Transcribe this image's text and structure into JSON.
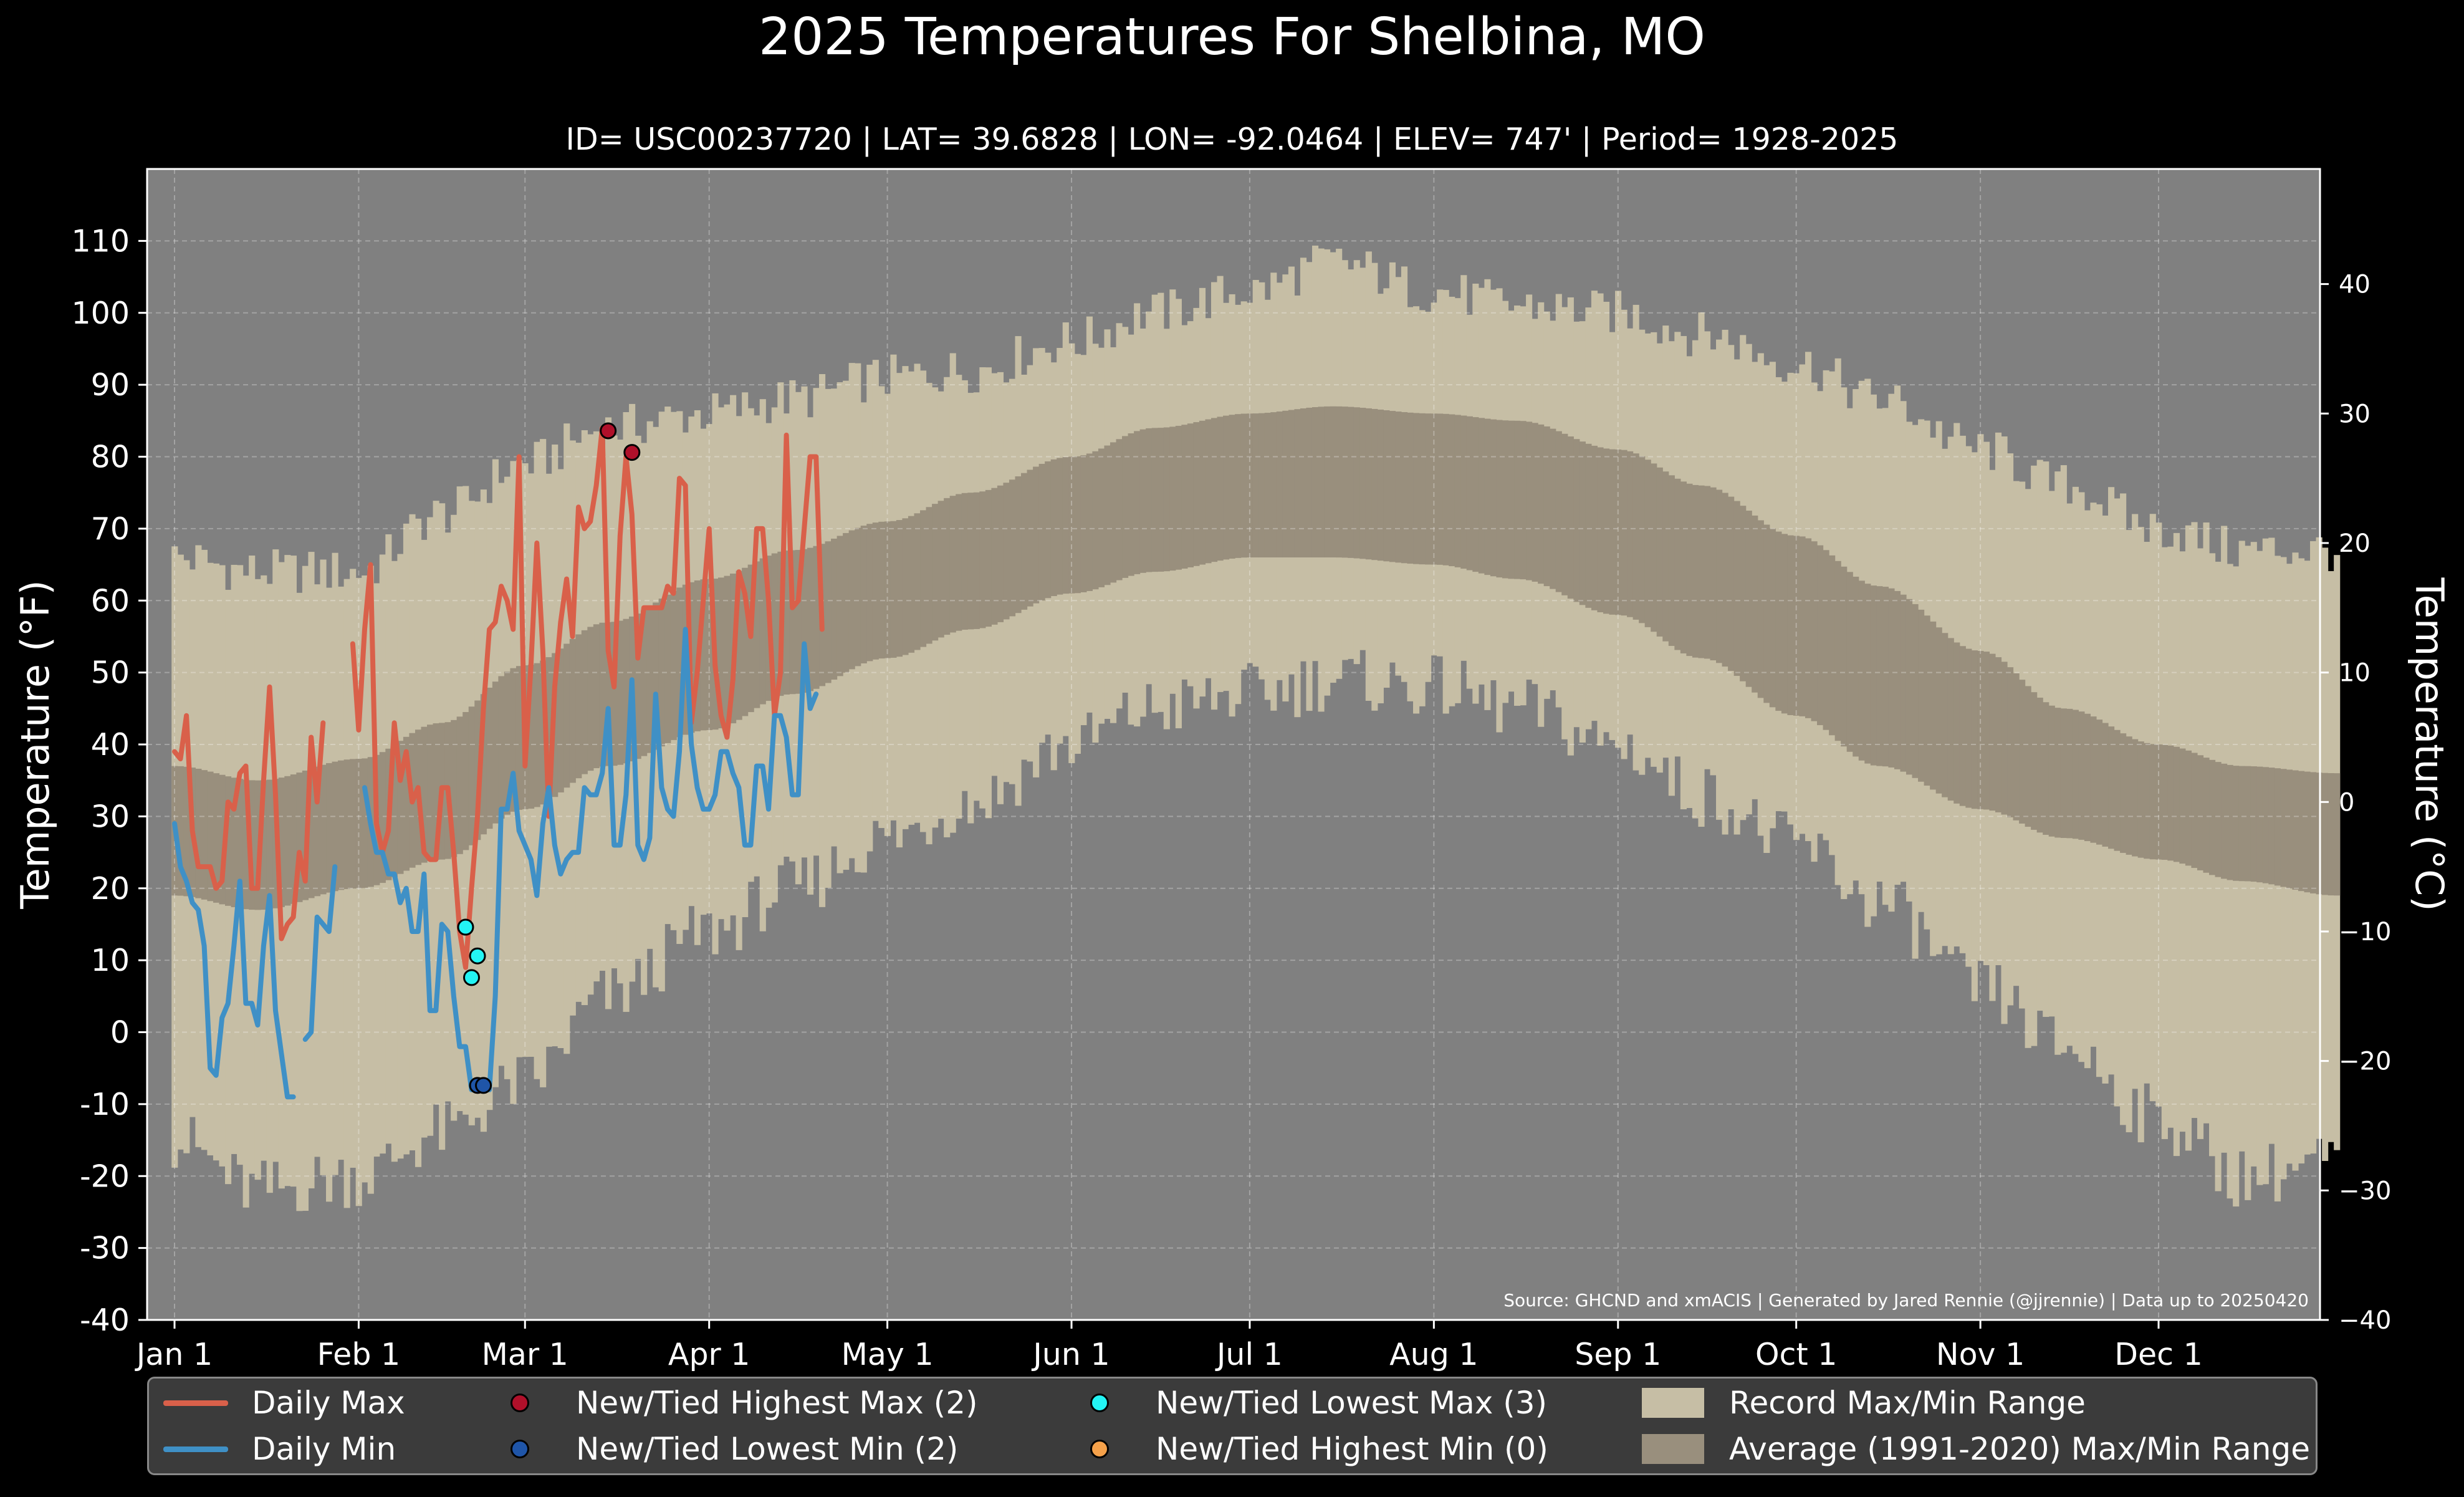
{
  "title": "2025 Temperatures For Shelbina, MO",
  "subtitle": "ID= USC00237720 | LAT= 39.6828 | LON= -92.0464 | ELEV= 747' | Period= 1928-2025",
  "source_note": "Source: GHCND and xmACIS | Generated by Jared Rennie (@jjrennie) | Data up to 20250420",
  "colors": {
    "background": "#000000",
    "plot_bg": "#808080",
    "record_range": "#c6bea5",
    "average_range": "#998f7d",
    "daily_max": "#d9604a",
    "daily_min": "#3f90c6",
    "highest_max": "#b0102a",
    "lowest_min": "#1f55a8",
    "lowest_max": "#23f4f4",
    "highest_min": "#f5a14a"
  },
  "legend": {
    "daily_max": "Daily Max",
    "daily_min": "Daily Min",
    "highest_max": "New/Tied Highest Max (2)",
    "lowest_min": "New/Tied Lowest Min (2)",
    "lowest_max": "New/Tied Lowest Max (3)",
    "highest_min": "New/Tied Highest Min (0)",
    "record_range": "Record Max/Min Range",
    "average_range": "Average (1991-2020) Max/Min Range"
  },
  "chart_data": {
    "type": "line",
    "title": "2025 Temperatures For Shelbina, MO",
    "ylabel": "Temperature ( $^\\circ$F)",
    "ylabel_right": "Temperature ( $^\\circ$C)",
    "ylabel_display": "Temperature (°F)",
    "ylabel_right_display": "Temperature (°C)",
    "ylim": [
      -40,
      120
    ],
    "yticks": [
      -40,
      -30,
      -20,
      -10,
      0,
      10,
      20,
      30,
      40,
      50,
      60,
      70,
      80,
      90,
      100,
      110
    ],
    "yticks_right": [
      -40,
      -30,
      -20,
      -10,
      0,
      10,
      20,
      30,
      40
    ],
    "x_month_labels": [
      "Jan 1",
      "Feb 1",
      "Mar 1",
      "Apr 1",
      "May 1",
      "Jun 1",
      "Jul 1",
      "Aug 1",
      "Sep 1",
      "Oct 1",
      "Nov 1",
      "Dec 1"
    ],
    "grid": true,
    "legend_position": "bottom",
    "record_range": {
      "max_anchors": [
        [
          1,
          66
        ],
        [
          15,
          64
        ],
        [
          32,
          64
        ],
        [
          46,
          72
        ],
        [
          60,
          79
        ],
        [
          74,
          84
        ],
        [
          91,
          86
        ],
        [
          105,
          88
        ],
        [
          121,
          91
        ],
        [
          135,
          92
        ],
        [
          152,
          96
        ],
        [
          166,
          100
        ],
        [
          182,
          103
        ],
        [
          196,
          107
        ],
        [
          213,
          103
        ],
        [
          227,
          101
        ],
        [
          244,
          100
        ],
        [
          258,
          97
        ],
        [
          274,
          93
        ],
        [
          288,
          88
        ],
        [
          305,
          81
        ],
        [
          319,
          76
        ],
        [
          335,
          70
        ],
        [
          349,
          67
        ],
        [
          365,
          67
        ]
      ],
      "min_anchors": [
        [
          1,
          -15
        ],
        [
          15,
          -22
        ],
        [
          32,
          -20
        ],
        [
          46,
          -14
        ],
        [
          60,
          -7
        ],
        [
          74,
          5
        ],
        [
          91,
          14
        ],
        [
          105,
          20
        ],
        [
          121,
          27
        ],
        [
          135,
          32
        ],
        [
          152,
          40
        ],
        [
          166,
          45
        ],
        [
          182,
          47
        ],
        [
          196,
          49
        ],
        [
          213,
          48
        ],
        [
          227,
          45
        ],
        [
          244,
          40
        ],
        [
          258,
          33
        ],
        [
          274,
          26
        ],
        [
          288,
          18
        ],
        [
          305,
          6
        ],
        [
          319,
          -2
        ],
        [
          335,
          -12
        ],
        [
          349,
          -20
        ],
        [
          365,
          -18
        ]
      ]
    },
    "average_range": {
      "max_anchors": [
        [
          1,
          37
        ],
        [
          15,
          35
        ],
        [
          32,
          38
        ],
        [
          46,
          43
        ],
        [
          60,
          51
        ],
        [
          74,
          57
        ],
        [
          91,
          63
        ],
        [
          105,
          67
        ],
        [
          121,
          71
        ],
        [
          135,
          75
        ],
        [
          152,
          80
        ],
        [
          166,
          84
        ],
        [
          182,
          86
        ],
        [
          196,
          87
        ],
        [
          213,
          86
        ],
        [
          227,
          85
        ],
        [
          244,
          81
        ],
        [
          258,
          76
        ],
        [
          274,
          69
        ],
        [
          288,
          62
        ],
        [
          305,
          53
        ],
        [
          319,
          45
        ],
        [
          335,
          40
        ],
        [
          349,
          37
        ],
        [
          365,
          36
        ]
      ],
      "min_anchors": [
        [
          1,
          19
        ],
        [
          15,
          17
        ],
        [
          32,
          20
        ],
        [
          46,
          24
        ],
        [
          60,
          31
        ],
        [
          74,
          37
        ],
        [
          91,
          42
        ],
        [
          105,
          47
        ],
        [
          121,
          52
        ],
        [
          135,
          56
        ],
        [
          152,
          61
        ],
        [
          166,
          64
        ],
        [
          182,
          66
        ],
        [
          196,
          66
        ],
        [
          213,
          65
        ],
        [
          227,
          63
        ],
        [
          244,
          58
        ],
        [
          258,
          52
        ],
        [
          274,
          44
        ],
        [
          288,
          37
        ],
        [
          305,
          31
        ],
        [
          319,
          27
        ],
        [
          335,
          24
        ],
        [
          349,
          21
        ],
        [
          365,
          19
        ]
      ]
    },
    "series": [
      {
        "name": "Daily Max",
        "x": [
          1,
          2,
          3,
          4,
          5,
          6,
          7,
          8,
          9,
          10,
          11,
          12,
          13,
          14,
          15,
          16,
          17,
          18,
          19,
          20,
          21,
          22,
          23,
          24,
          25,
          26,
          27,
          28,
          29,
          30,
          31,
          32,
          33,
          34,
          35,
          36,
          37,
          38,
          39,
          40,
          41,
          42,
          43,
          44,
          45,
          46,
          47,
          48,
          49,
          50,
          51,
          52,
          53,
          54,
          55,
          56,
          57,
          58,
          59,
          60,
          61,
          62,
          63,
          64,
          65,
          66,
          67,
          68,
          69,
          70,
          71,
          72,
          73,
          74,
          75,
          76,
          77,
          78,
          79,
          80,
          81,
          82,
          83,
          84,
          85,
          86,
          87,
          88,
          89,
          90,
          91,
          92,
          93,
          94,
          95,
          96,
          97,
          98,
          99,
          100,
          101,
          102,
          103,
          104,
          105,
          106,
          107,
          108,
          109,
          110
        ],
        "values": [
          39,
          38,
          44,
          28,
          23,
          23,
          23,
          20,
          21,
          32,
          31,
          36,
          37,
          20,
          20,
          35,
          48,
          33,
          13,
          15,
          16,
          25,
          21,
          41,
          32,
          43,
          null,
          null,
          null,
          null,
          54,
          42,
          56,
          65,
          29,
          25,
          28,
          43,
          35,
          39,
          32,
          34,
          25,
          24,
          24,
          34,
          34,
          25,
          14,
          9,
          20,
          30,
          45,
          56,
          57,
          62,
          60,
          56,
          80,
          37,
          51,
          68,
          53,
          30,
          48,
          57,
          63,
          55,
          73,
          70,
          71,
          76,
          84,
          53,
          48,
          69,
          80,
          72,
          52,
          59,
          59,
          59,
          59,
          62,
          61,
          77,
          76,
          43,
          50,
          60,
          70,
          51,
          44,
          41,
          49,
          64,
          61,
          55,
          70,
          70,
          60,
          44,
          50,
          83,
          59,
          60,
          70,
          80,
          80,
          56
        ]
      },
      {
        "name": "Daily Min",
        "x": [
          1,
          2,
          3,
          4,
          5,
          6,
          7,
          8,
          9,
          10,
          11,
          12,
          13,
          14,
          15,
          16,
          17,
          18,
          19,
          20,
          21,
          22,
          23,
          24,
          25,
          26,
          27,
          28,
          29,
          30,
          31,
          32,
          33,
          34,
          35,
          36,
          37,
          38,
          39,
          40,
          41,
          42,
          43,
          44,
          45,
          46,
          47,
          48,
          49,
          50,
          51,
          52,
          53,
          54,
          55,
          56,
          57,
          58,
          59,
          60,
          61,
          62,
          63,
          64,
          65,
          66,
          67,
          68,
          69,
          70,
          71,
          72,
          73,
          74,
          75,
          76,
          77,
          78,
          79,
          80,
          81,
          82,
          83,
          84,
          85,
          86,
          87,
          88,
          89,
          90,
          91,
          92,
          93,
          94,
          95,
          96,
          97,
          98,
          99,
          100,
          101,
          102,
          103,
          104,
          105,
          106,
          107,
          108,
          109,
          110
        ],
        "values": [
          29,
          23,
          21,
          18,
          17,
          12,
          -5,
          -6,
          2,
          4,
          12,
          21,
          4,
          4,
          1,
          12,
          19,
          3,
          -3,
          -9,
          -9,
          null,
          -1,
          0,
          16,
          15,
          14,
          23,
          null,
          null,
          null,
          null,
          34,
          29,
          25,
          25,
          22,
          22,
          18,
          20,
          14,
          14,
          22,
          3,
          3,
          15,
          14,
          5,
          -2,
          -2,
          -8,
          -8,
          -8,
          -8,
          5,
          31,
          31,
          36,
          28,
          26,
          24,
          19,
          29,
          34,
          26,
          22,
          24,
          25,
          25,
          34,
          33,
          33,
          36,
          45,
          26,
          26,
          33,
          49,
          26,
          24,
          27,
          47,
          34,
          31,
          30,
          39,
          56,
          40,
          34,
          31,
          31,
          33,
          39,
          39,
          36,
          34,
          26,
          26,
          37,
          37,
          31,
          44,
          44,
          41,
          33,
          33,
          54,
          45,
          47,
          null
        ]
      }
    ],
    "markers": [
      {
        "name": "New/Tied Highest Max (2)",
        "points": [
          [
            74,
            83.6
          ],
          [
            78,
            80.6
          ]
        ]
      },
      {
        "name": "New/Tied Lowest Min (2)",
        "points": [
          [
            52,
            -7.4
          ],
          [
            53,
            -7.4
          ]
        ]
      },
      {
        "name": "New/Tied Lowest Max (3)",
        "points": [
          [
            50,
            14.6
          ],
          [
            51,
            7.6
          ],
          [
            52,
            10.6
          ]
        ]
      },
      {
        "name": "New/Tied Highest Min (0)",
        "points": []
      }
    ]
  }
}
